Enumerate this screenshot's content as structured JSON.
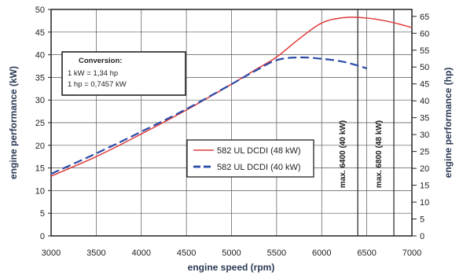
{
  "chart_data": {
    "type": "line",
    "title": "",
    "xlabel": "engine speed (rpm)",
    "ylabel": "engine performance (kW)",
    "y2label": "engine performance (hp)",
    "xlim": [
      3000,
      7000
    ],
    "ylim": [
      0,
      50
    ],
    "y2lim": [
      0,
      67.05
    ],
    "x_ticks": [
      "3000",
      "3500",
      "4000",
      "4500",
      "5000",
      "5500",
      "6000",
      "6500",
      "7000"
    ],
    "y_ticks": [
      "0",
      "5",
      "10",
      "15",
      "20",
      "25",
      "30",
      "35",
      "40",
      "45",
      "50"
    ],
    "y2_ticks": [
      "0",
      "5",
      "10",
      "15",
      "20",
      "25",
      "30",
      "35",
      "40",
      "45",
      "50",
      "55",
      "60",
      "65"
    ],
    "grid": true,
    "legend_position": "center-right",
    "series": [
      {
        "name": "582 UL DCDI (48 kW)",
        "color": "#e03a3a",
        "style": "solid",
        "x": [
          3000,
          3500,
          4000,
          4500,
          5000,
          5250,
          5500,
          5750,
          6000,
          6250,
          6500,
          6750,
          7000
        ],
        "y": [
          13.2,
          17.5,
          22.5,
          27.8,
          33.5,
          36.5,
          39.5,
          43.5,
          47.0,
          48.2,
          48.1,
          47.3,
          46.0
        ]
      },
      {
        "name": "582 UL DCDI (40 kW)",
        "color": "#2a4aa8",
        "style": "dashed",
        "x": [
          3000,
          3500,
          4000,
          4500,
          5000,
          5250,
          5500,
          5750,
          6000,
          6250,
          6500
        ],
        "y": [
          13.7,
          18.2,
          23.0,
          28.0,
          33.5,
          36.3,
          38.8,
          39.4,
          39.1,
          38.4,
          37.0
        ]
      }
    ],
    "vlines": [
      {
        "x": 6400,
        "label": "max. 6400 (40 kW)"
      },
      {
        "x": 6800,
        "label": "max. 6800 (48 kW)"
      }
    ],
    "conversion_box": {
      "title": "Conversion:",
      "line1": "1  kW  =  1,34 hp",
      "line2": "1  hp   =  0,7457 kW"
    }
  }
}
